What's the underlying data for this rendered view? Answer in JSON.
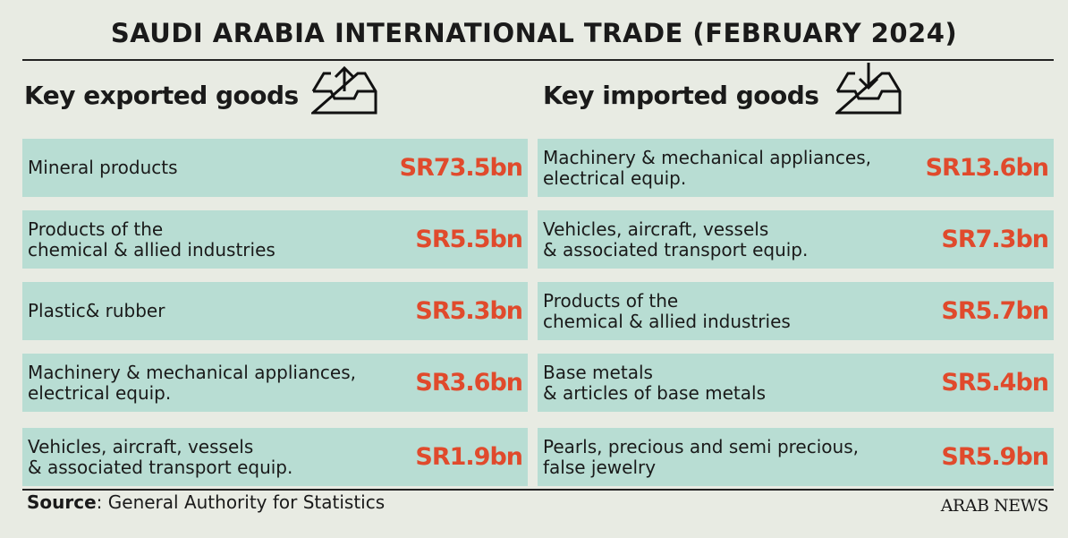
{
  "header": {
    "title": "SAUDI ARABIA INTERNATIONAL TRADE (FEBRUARY 2024)"
  },
  "exports": {
    "heading": "Key exported goods",
    "items": [
      {
        "label": [
          "Mineral products"
        ],
        "value": "SR73.5bn"
      },
      {
        "label": [
          "Products of the",
          "chemical & allied industries"
        ],
        "value": "SR5.5bn"
      },
      {
        "label": [
          "Plastic& rubber"
        ],
        "value": "SR5.3bn"
      },
      {
        "label": [
          "Machinery & mechanical appliances,",
          "electrical equip."
        ],
        "value": "SR3.6bn"
      },
      {
        "label": [
          "Vehicles, aircraft, vessels",
          "& associated transport equip."
        ],
        "value": "SR1.9bn"
      }
    ]
  },
  "imports": {
    "heading": "Key imported goods",
    "items": [
      {
        "label": [
          "Machinery & mechanical appliances,",
          "electrical equip."
        ],
        "value": "SR13.6bn"
      },
      {
        "label": [
          "Vehicles, aircraft, vessels",
          "& associated transport equip."
        ],
        "value": "SR7.3bn"
      },
      {
        "label": [
          "Products of the",
          "chemical & allied industries"
        ],
        "value": "SR5.7bn"
      },
      {
        "label": [
          "Base metals",
          "& articles of base metals"
        ],
        "value": "SR5.4bn"
      },
      {
        "label": [
          "Pearls, precious and semi precious,",
          "false jewelry"
        ],
        "value": "SR5.9bn"
      }
    ]
  },
  "footer": {
    "source_label": "Source",
    "source_text": ": General Authority for Statistics",
    "brand": "ARAB NEWS"
  }
}
